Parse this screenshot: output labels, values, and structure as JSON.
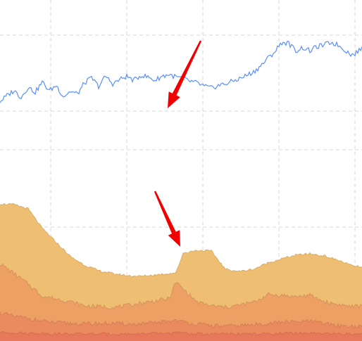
{
  "chart_data": [
    {
      "type": "line",
      "grid": true,
      "x": [
        0,
        10,
        20,
        30,
        40,
        50,
        60,
        70,
        80,
        90,
        100,
        110,
        120,
        130,
        140,
        150,
        160,
        170,
        180,
        190,
        200,
        210,
        220,
        230,
        240,
        250,
        260,
        270,
        280,
        290,
        300,
        310,
        320,
        330,
        340,
        350,
        360,
        370,
        380,
        390,
        400,
        410,
        420,
        430,
        440,
        450,
        460,
        470,
        480,
        490,
        500,
        510,
        514
      ],
      "series": [
        {
          "color": "#5b8ff9",
          "values": [
            88,
            95,
            101,
            93,
            105,
            99,
            111,
            101,
            107,
            94,
            100,
            97,
            110,
            116,
            106,
            118,
            109,
            114,
            118,
            113,
            119,
            117,
            113,
            118,
            120,
            117,
            115,
            112,
            110,
            106,
            104,
            107,
            109,
            112,
            115,
            119,
            123,
            130,
            139,
            147,
            158,
            157,
            148,
            152,
            148,
            153,
            155,
            158,
            155,
            149,
            143,
            148,
            153
          ]
        }
      ],
      "annotation": {
        "type": "arrow",
        "color": "#f00000"
      }
    },
    {
      "type": "area",
      "grid": true,
      "x": [
        0,
        20,
        40,
        60,
        80,
        100,
        120,
        140,
        160,
        180,
        200,
        220,
        240,
        250,
        260,
        280,
        300,
        320,
        340,
        360,
        380,
        400,
        420,
        440,
        460,
        480,
        500,
        514
      ],
      "series": [
        {
          "color": "#edba6c",
          "values": [
            195,
            194,
            188,
            160,
            140,
            120,
            108,
            100,
            96,
            93,
            92,
            94,
            96,
            97,
            125,
            129,
            128,
            102,
            99,
            102,
            111,
            117,
            122,
            124,
            121,
            115,
            107,
            105
          ]
        },
        {
          "color": "#ec9e63",
          "values": [
            110,
            96,
            81,
            64,
            60,
            56,
            50,
            49,
            48,
            50,
            54,
            57,
            60,
            84,
            74,
            55,
            50,
            48,
            51,
            55,
            66,
            65,
            63,
            65,
            56,
            52,
            49,
            50
          ]
        },
        {
          "color": "#ea8a5e",
          "values": [
            40,
            35,
            32,
            28,
            26,
            25,
            24,
            25,
            25,
            24,
            24,
            26,
            28,
            30,
            27,
            24,
            22,
            21,
            22,
            23,
            25,
            27,
            27,
            28,
            25,
            22,
            21,
            20
          ]
        },
        {
          "color": "#e8775a",
          "values": [
            12,
            12,
            11,
            11,
            10,
            10,
            10,
            10,
            10,
            10,
            10,
            11,
            11,
            12,
            11,
            10,
            10,
            10,
            10,
            10,
            10,
            11,
            11,
            11,
            10,
            10,
            10,
            10
          ]
        }
      ],
      "annotation": {
        "type": "arrow",
        "color": "#f00000"
      }
    }
  ]
}
